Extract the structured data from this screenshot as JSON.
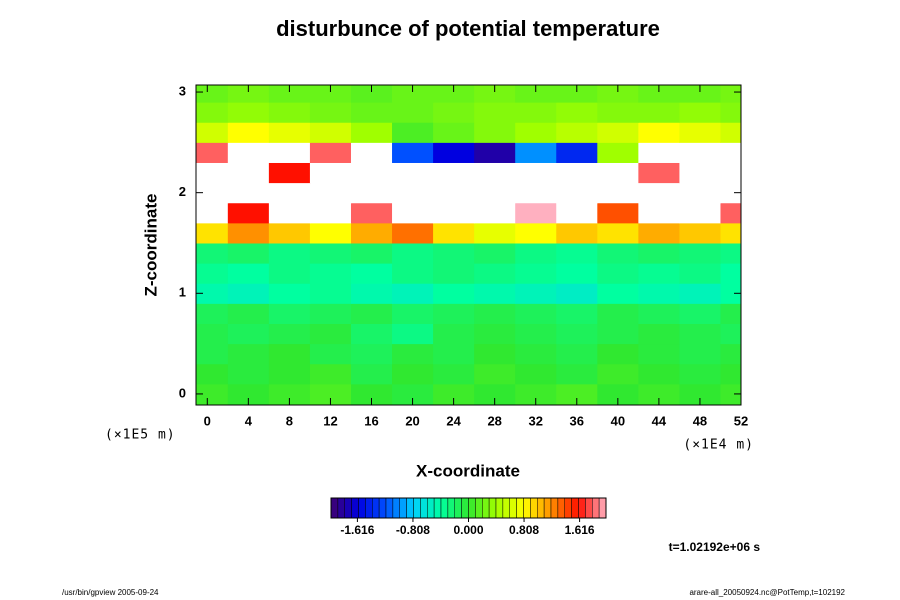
{
  "chart_data": {
    "type": "heatmap",
    "title": "disturbunce of potential temperature",
    "x_label": "X-coordinate",
    "y_label": "Z-coordinate",
    "x_unit": "(×1E4 m)",
    "y_unit": "(×1E5 m)",
    "time_label": "t=1.02192e+06 s",
    "footer_left": "/usr/bin/gpview 2005-09-24",
    "footer_right": "arare-all_20050924.nc@PotTemp,t=102192",
    "xlim": [
      -1.1,
      52
    ],
    "ylim": [
      -0.11,
      3.07
    ],
    "xticks": [
      0,
      4,
      8,
      12,
      16,
      20,
      24,
      28,
      32,
      36,
      40,
      44,
      48,
      52
    ],
    "yticks": [
      0,
      1,
      2,
      3
    ],
    "x": [
      0,
      4,
      8,
      12,
      16,
      20,
      24,
      28,
      32,
      36,
      40,
      44,
      48,
      52
    ],
    "y": [
      0,
      0.2,
      0.4,
      0.6,
      0.8,
      1.0,
      1.2,
      1.4,
      1.6,
      1.8,
      2.0,
      2.2,
      2.4,
      2.6,
      2.8,
      3.0
    ],
    "values": [
      [
        0.05,
        0.0,
        0.05,
        0.1,
        0.0,
        -0.05,
        0.05,
        0.0,
        0.05,
        0.1,
        0.0,
        0.05,
        0.0,
        0.05
      ],
      [
        0.0,
        -0.05,
        0.0,
        0.05,
        -0.1,
        0.0,
        -0.05,
        0.05,
        0.0,
        -0.05,
        0.05,
        0.0,
        -0.05,
        0.0
      ],
      [
        -0.1,
        -0.05,
        0.0,
        -0.1,
        -0.15,
        -0.05,
        -0.1,
        0.0,
        -0.05,
        -0.1,
        0.0,
        -0.05,
        -0.1,
        -0.05
      ],
      [
        -0.1,
        -0.15,
        -0.1,
        -0.05,
        -0.2,
        -0.3,
        -0.1,
        -0.05,
        -0.1,
        -0.15,
        -0.1,
        -0.05,
        -0.1,
        -0.15
      ],
      [
        -0.15,
        -0.1,
        -0.2,
        -0.15,
        -0.1,
        -0.2,
        -0.15,
        -0.1,
        -0.15,
        -0.2,
        -0.1,
        -0.15,
        -0.2,
        -0.1
      ],
      [
        -0.45,
        -0.5,
        -0.4,
        -0.35,
        -0.45,
        -0.5,
        -0.4,
        -0.45,
        -0.5,
        -0.55,
        -0.4,
        -0.45,
        -0.5,
        -0.4
      ],
      [
        -0.35,
        -0.4,
        -0.3,
        -0.35,
        -0.4,
        -0.3,
        -0.25,
        -0.3,
        -0.35,
        -0.4,
        -0.3,
        -0.35,
        -0.3,
        -0.4
      ],
      [
        -0.25,
        -0.2,
        -0.3,
        -0.25,
        -0.2,
        -0.3,
        -0.25,
        -0.2,
        -0.3,
        -0.35,
        -0.25,
        -0.2,
        -0.25,
        -0.3
      ],
      [
        0.9,
        1.2,
        1.0,
        0.8,
        1.1,
        1.3,
        0.9,
        0.7,
        0.8,
        1.0,
        0.9,
        1.1,
        1.0,
        0.9
      ],
      [
        2.4,
        1.6,
        2.6,
        2.2,
        1.8,
        2.6,
        2.8,
        2.4,
        2.0,
        2.6,
        1.4,
        2.2,
        2.6,
        1.8
      ],
      [
        2.8,
        2.6,
        3.0,
        2.4,
        2.8,
        3.0,
        3.0,
        2.9,
        2.6,
        3.0,
        2.8,
        2.5,
        3.0,
        2.8
      ],
      [
        2.6,
        2.2,
        1.6,
        2.4,
        2.8,
        2.6,
        2.4,
        2.6,
        2.8,
        2.2,
        2.6,
        1.8,
        2.4,
        2.6
      ],
      [
        1.8,
        2.4,
        2.2,
        1.8,
        2.6,
        -1.2,
        -1.6,
        -1.8,
        -1.0,
        -1.4,
        0.4,
        2.6,
        2.4,
        2.2
      ],
      [
        0.6,
        0.8,
        0.7,
        0.6,
        0.4,
        0.1,
        0.2,
        0.3,
        0.4,
        0.5,
        0.6,
        0.8,
        0.7,
        0.6
      ],
      [
        0.3,
        0.35,
        0.3,
        0.25,
        0.2,
        0.2,
        0.25,
        0.3,
        0.3,
        0.35,
        0.3,
        0.3,
        0.35,
        0.3
      ],
      [
        0.2,
        0.25,
        0.2,
        0.2,
        0.15,
        0.2,
        0.2,
        0.25,
        0.2,
        0.2,
        0.25,
        0.2,
        0.2,
        0.25
      ]
    ],
    "clim": [
      -2,
      2
    ],
    "cticks": [
      -1.616,
      -0.808,
      {
        "value": 0,
        "label": "0.000"
      },
      0.808,
      1.616
    ],
    "colormap": [
      "#400070",
      "#0000e0",
      "#0050ff",
      "#00d0ff",
      "#00ffa0",
      "#30e830",
      "#a0ff00",
      "#ffff00",
      "#ff9000",
      "#ff1000",
      "#ffb0c0"
    ],
    "out_of_range_color": "#ffffff"
  }
}
